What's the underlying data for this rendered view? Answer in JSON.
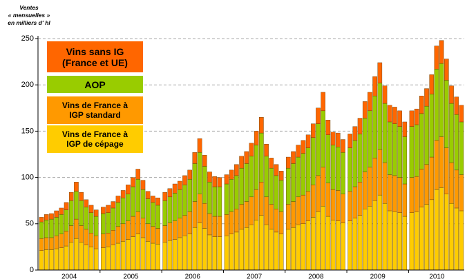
{
  "chart_data": {
    "type": "stacked_bar",
    "y_axis_label": "Ventes\n« mensuelles »\nen milliers d' hl",
    "categories": [
      "2004",
      null,
      null,
      null,
      null,
      null,
      null,
      null,
      null,
      null,
      null,
      null,
      "2005",
      null,
      null,
      null,
      null,
      null,
      null,
      null,
      null,
      null,
      null,
      null,
      "2006",
      null,
      null,
      null,
      null,
      null,
      null,
      null,
      null,
      null,
      null,
      null,
      "2007",
      null,
      null,
      null,
      null,
      null,
      null,
      null,
      null,
      null,
      null,
      null,
      "2008",
      null,
      null,
      null,
      null,
      null,
      null,
      null,
      null,
      null,
      null,
      null,
      "2009",
      null,
      null,
      null,
      null,
      null,
      null,
      null,
      null,
      null,
      null,
      null,
      "2010",
      null,
      null,
      null,
      null,
      null,
      null,
      null,
      null,
      null,
      null
    ],
    "ylim": [
      0,
      250
    ],
    "yticks": [
      0,
      50,
      100,
      150,
      200,
      250
    ],
    "grid": true,
    "series": [
      {
        "name": "Vins de France à\nIGP de cépage",
        "color": "#ffcc00",
        "values": [
          21,
          22,
          22,
          23,
          24,
          26,
          30,
          34,
          30,
          27,
          25,
          23,
          24,
          25,
          27,
          29,
          31,
          33,
          36,
          39,
          35,
          31,
          29,
          28,
          30,
          32,
          33,
          35,
          37,
          39,
          46,
          51,
          45,
          38,
          36,
          36,
          37,
          39,
          41,
          44,
          46,
          49,
          54,
          59,
          49,
          44,
          41,
          39,
          44,
          46,
          49,
          50,
          53,
          57,
          63,
          69,
          58,
          54,
          53,
          51,
          53,
          56,
          59,
          66,
          69,
          75,
          81,
          72,
          64,
          63,
          62,
          58,
          62,
          63,
          68,
          71,
          76,
          87,
          89,
          82,
          72,
          67,
          64
        ]
      },
      {
        "name": "Vins de France à\nIGP standard",
        "color": "#ff9900",
        "values": [
          13,
          13,
          13,
          14,
          15,
          16,
          18,
          21,
          18,
          17,
          15,
          14,
          15,
          15,
          16,
          18,
          19,
          20,
          22,
          24,
          21,
          19,
          18,
          17,
          18,
          19,
          20,
          21,
          22,
          24,
          28,
          31,
          27,
          23,
          22,
          22,
          23,
          24,
          25,
          27,
          28,
          30,
          33,
          36,
          30,
          27,
          25,
          24,
          27,
          28,
          30,
          31,
          32,
          35,
          39,
          42,
          36,
          33,
          33,
          31,
          32,
          34,
          36,
          40,
          42,
          46,
          49,
          44,
          39,
          39,
          38,
          35,
          38,
          38,
          41,
          43,
          46,
          53,
          55,
          50,
          44,
          41,
          39
        ]
      },
      {
        "name": "AOP",
        "color": "#99cc00",
        "values": [
          18,
          19,
          20,
          20,
          21,
          23,
          27,
          30,
          27,
          24,
          22,
          21,
          22,
          22,
          24,
          26,
          28,
          29,
          32,
          35,
          31,
          27,
          26,
          25,
          27,
          28,
          30,
          31,
          33,
          35,
          41,
          45,
          40,
          34,
          32,
          32,
          33,
          35,
          36,
          39,
          41,
          44,
          48,
          53,
          44,
          39,
          36,
          34,
          39,
          41,
          43,
          45,
          47,
          51,
          56,
          61,
          52,
          48,
          47,
          45,
          47,
          50,
          52,
          58,
          61,
          67,
          72,
          64,
          57,
          56,
          55,
          51,
          55,
          56,
          60,
          63,
          68,
          77,
          79,
          73,
          64,
          60,
          57
        ]
      },
      {
        "name": "Vins sans IG\n(France et UE)",
        "color": "#ff6600",
        "values": [
          5,
          6,
          6,
          7,
          7,
          8,
          9,
          10,
          9,
          8,
          8,
          7,
          7,
          8,
          7,
          7,
          8,
          10,
          10,
          11,
          10,
          8,
          7,
          8,
          9,
          9,
          10,
          9,
          10,
          10,
          12,
          15,
          12,
          11,
          11,
          10,
          10,
          10,
          12,
          13,
          13,
          14,
          15,
          17,
          13,
          11,
          12,
          10,
          12,
          13,
          13,
          14,
          14,
          15,
          17,
          20,
          16,
          14,
          15,
          14,
          15,
          15,
          17,
          18,
          20,
          21,
          22,
          19,
          18,
          18,
          17,
          16,
          17,
          17,
          19,
          19,
          21,
          25,
          25,
          23,
          19,
          19,
          18
        ]
      }
    ]
  }
}
